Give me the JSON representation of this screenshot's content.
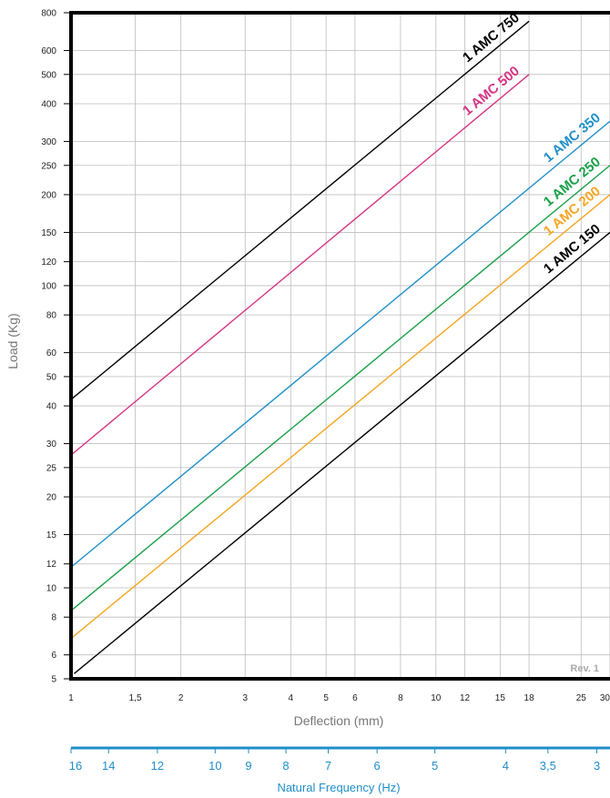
{
  "chart_data": {
    "type": "line",
    "xlabel": "Deflection (mm)",
    "ylabel": "Load (Kg)",
    "x_scale": "log",
    "y_scale": "log",
    "xlim": [
      1,
      30
    ],
    "ylim": [
      5,
      800
    ],
    "x_ticks": [
      {
        "value": 1,
        "label": "1"
      },
      {
        "value": 1.5,
        "label": "1,5"
      },
      {
        "value": 2,
        "label": "2"
      },
      {
        "value": 3,
        "label": "3"
      },
      {
        "value": 4,
        "label": "4"
      },
      {
        "value": 5,
        "label": "5"
      },
      {
        "value": 6,
        "label": "6"
      },
      {
        "value": 8,
        "label": "8"
      },
      {
        "value": 10,
        "label": "10"
      },
      {
        "value": 12,
        "label": "12"
      },
      {
        "value": 15,
        "label": "15"
      },
      {
        "value": 18,
        "label": "18"
      },
      {
        "value": 25,
        "label": "25"
      },
      {
        "value": 30,
        "label": "30"
      }
    ],
    "y_ticks": [
      {
        "value": 5,
        "label": "5"
      },
      {
        "value": 6,
        "label": "6"
      },
      {
        "value": 8,
        "label": "8"
      },
      {
        "value": 10,
        "label": "10"
      },
      {
        "value": 12,
        "label": "12"
      },
      {
        "value": 15,
        "label": "15"
      },
      {
        "value": 20,
        "label": "20"
      },
      {
        "value": 25,
        "label": "25"
      },
      {
        "value": 30,
        "label": "30"
      },
      {
        "value": 40,
        "label": "40"
      },
      {
        "value": 50,
        "label": "50"
      },
      {
        "value": 60,
        "label": "60"
      },
      {
        "value": 80,
        "label": "80"
      },
      {
        "value": 100,
        "label": "100"
      },
      {
        "value": 120,
        "label": "120"
      },
      {
        "value": 150,
        "label": "150"
      },
      {
        "value": 200,
        "label": "200"
      },
      {
        "value": 250,
        "label": "250"
      },
      {
        "value": 300,
        "label": "300"
      },
      {
        "value": 400,
        "label": "400"
      },
      {
        "value": 500,
        "label": "500"
      },
      {
        "value": 600,
        "label": "600"
      },
      {
        "value": 800,
        "label": "800"
      }
    ],
    "grid": true,
    "series": [
      {
        "name": "1 AMC 750",
        "color": "#000000",
        "x": [
          1,
          18
        ],
        "y": [
          42,
          750
        ]
      },
      {
        "name": "1 AMC 500",
        "color": "#d63384",
        "x": [
          1,
          18
        ],
        "y": [
          27.5,
          500
        ]
      },
      {
        "name": "1 AMC 350",
        "color": "#1f8fc9",
        "x": [
          1,
          30
        ],
        "y": [
          11.7,
          350
        ]
      },
      {
        "name": "1 AMC 250",
        "color": "#18a047",
        "x": [
          1,
          30
        ],
        "y": [
          8.4,
          250
        ]
      },
      {
        "name": "1 AMC 200",
        "color": "#f5a623",
        "x": [
          1,
          30
        ],
        "y": [
          6.8,
          200
        ]
      },
      {
        "name": "1 AMC 150",
        "color": "#000000",
        "x": [
          1.02,
          30
        ],
        "y": [
          5.2,
          150
        ]
      }
    ],
    "annotation": "Rev. 1",
    "secondary_axis": {
      "label": "Natural Frequency (Hz)",
      "color": "#1f8fc9",
      "ticks": [
        {
          "value": 16,
          "label": "16"
        },
        {
          "value": 14,
          "label": "14"
        },
        {
          "value": 12,
          "label": "12"
        },
        {
          "value": 10,
          "label": "10"
        },
        {
          "value": 9,
          "label": "9"
        },
        {
          "value": 8,
          "label": "8"
        },
        {
          "value": 7,
          "label": "7"
        },
        {
          "value": 6,
          "label": "6"
        },
        {
          "value": 5,
          "label": "5"
        },
        {
          "value": 4,
          "label": "4"
        },
        {
          "value": 3.5,
          "label": "3,5"
        },
        {
          "value": 3,
          "label": "3"
        }
      ]
    }
  }
}
